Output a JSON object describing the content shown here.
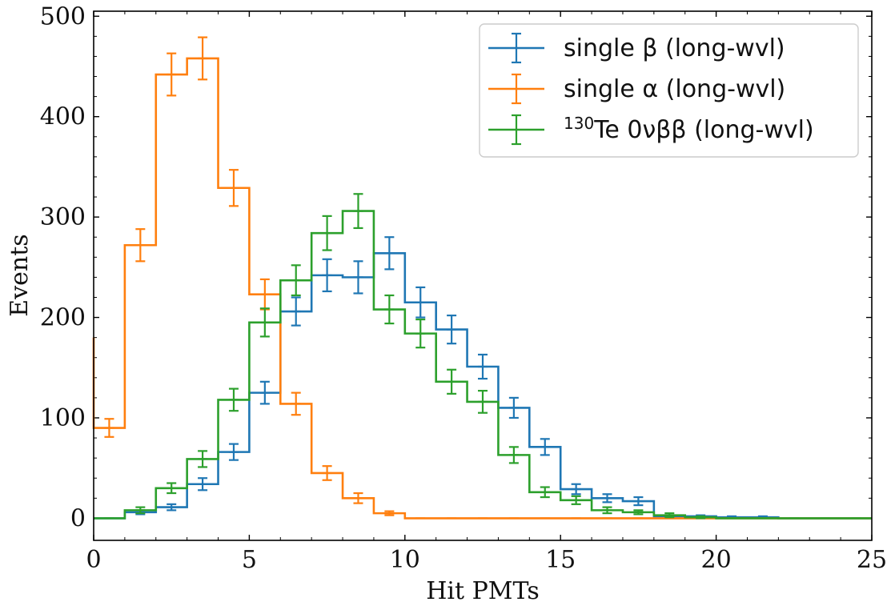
{
  "chart_data": {
    "type": "histogram-step",
    "xlabel": "Hit PMTs",
    "ylabel": "Events",
    "xlim": [
      0,
      25
    ],
    "ylim": [
      -22,
      505
    ],
    "xticks": [
      0,
      5,
      10,
      15,
      20,
      25
    ],
    "yticks": [
      0,
      100,
      200,
      300,
      400,
      500
    ],
    "legend_position": "top-right",
    "series": [
      {
        "name": "single β (long-wvl)",
        "color": "#1f77b4",
        "edges": [
          0,
          1,
          2,
          3,
          4,
          5,
          6,
          7,
          8,
          9,
          10,
          11,
          12,
          13,
          14,
          15,
          16,
          17,
          18,
          19,
          20,
          21,
          22,
          23,
          24,
          25
        ],
        "values": [
          0,
          6,
          11,
          34,
          66,
          125,
          206,
          242,
          240,
          264,
          215,
          188,
          151,
          110,
          71,
          29,
          20,
          17,
          2,
          2,
          1,
          1,
          0,
          0,
          0
        ],
        "errors": [
          0,
          2,
          3,
          6,
          8,
          11,
          14,
          16,
          16,
          16,
          15,
          14,
          12,
          10,
          8,
          5,
          4,
          4,
          1,
          1,
          1,
          1,
          0,
          0,
          0
        ]
      },
      {
        "name": "single α (long-wvl)",
        "color": "#ff7f0e",
        "edges": [
          0,
          1,
          2,
          3,
          4,
          5,
          6,
          7,
          8,
          9,
          10,
          11,
          12,
          13,
          14,
          15,
          16,
          17,
          18,
          19,
          20,
          21,
          22,
          23,
          24,
          25
        ],
        "values": [
          90,
          272,
          442,
          458,
          329,
          223,
          114,
          45,
          20,
          5,
          0,
          0,
          0,
          0,
          0,
          0,
          0,
          0,
          0,
          0,
          0,
          0,
          0,
          0,
          0
        ],
        "errors": [
          9,
          16,
          21,
          21,
          18,
          15,
          11,
          7,
          5,
          2,
          0,
          0,
          0,
          0,
          0,
          0,
          0,
          0,
          0,
          0,
          0,
          0,
          0,
          0,
          0
        ],
        "leading_edge_height": 180
      },
      {
        "name": "130Te 0νββ (long-wvl)",
        "color": "#2ca02c",
        "label_parts": {
          "sup": "130",
          "text": "Te 0νββ (long-wvl)"
        },
        "edges": [
          0,
          1,
          2,
          3,
          4,
          5,
          6,
          7,
          8,
          9,
          10,
          11,
          12,
          13,
          14,
          15,
          16,
          17,
          18,
          19,
          20,
          21,
          22,
          23,
          24,
          25
        ],
        "values": [
          0,
          8,
          30,
          59,
          118,
          195,
          237,
          284,
          306,
          208,
          184,
          136,
          116,
          63,
          26,
          18,
          8,
          6,
          3,
          1,
          0,
          0,
          0,
          0,
          0
        ],
        "errors": [
          0,
          3,
          5,
          8,
          11,
          14,
          15,
          17,
          17,
          14,
          14,
          12,
          11,
          8,
          5,
          4,
          3,
          2,
          2,
          1,
          0,
          0,
          0,
          0,
          0
        ]
      }
    ]
  }
}
